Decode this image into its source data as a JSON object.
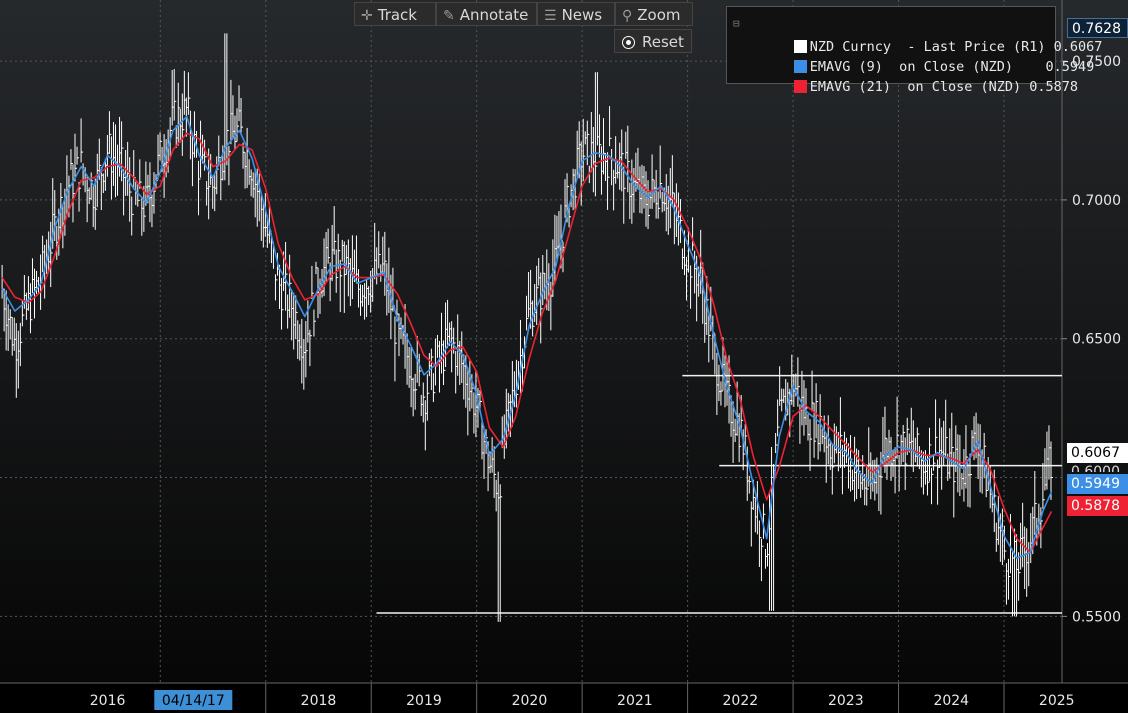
{
  "toolbar": {
    "track_label": "Track",
    "annotate_label": "Annotate",
    "news_label": "News",
    "zoom_label": "Zoom",
    "reset_label": "Reset"
  },
  "legend": {
    "rows": [
      {
        "label": "NZD Curncy  - Last Price (R1)",
        "value": "0.6067",
        "color": "#ffffff"
      },
      {
        "label": "EMAVG (9)  on Close (NZD)",
        "value": "0.5949",
        "color": "#3c8fe6"
      },
      {
        "label": "EMAVG (21)  on Close (NZD)",
        "value": "0.5878",
        "color": "#ee2233"
      }
    ]
  },
  "badges": {
    "top_value": "0.7628",
    "last_price": "0.6067",
    "ema9": "0.5949",
    "ema21": "0.5878",
    "partially_hidden_tick": "0.6000"
  },
  "date_marker": "04/14/17",
  "colors": {
    "price": "#ffffff",
    "ema9": "#3c8fe6",
    "ema21": "#ee2233",
    "badge_white_bg": "#ffffff",
    "badge_blue_bg": "#3c8fe6",
    "badge_red_bg": "#ee2233"
  },
  "chart_data": {
    "type": "line",
    "title": "",
    "xlabel": "",
    "ylabel": "",
    "x_tick_labels": [
      "2016",
      "2017",
      "2018",
      "2019",
      "2020",
      "2021",
      "2022",
      "2023",
      "2024",
      "2025"
    ],
    "y_tick_labels": [
      "0.7500",
      "0.7000",
      "0.6500",
      "0.5500"
    ],
    "ylim": [
      0.526,
      0.772
    ],
    "xlim": [
      2015.48,
      2025.55
    ],
    "grid": true,
    "legend_position": "top-right",
    "horizontal_lines": [
      {
        "y": 0.6367,
        "x_start": 2021.95
      },
      {
        "y": 0.6043,
        "x_start": 2022.3
      },
      {
        "y": 0.5512,
        "x_start": 2019.05
      }
    ],
    "series": [
      {
        "name": "NZD Curncy  - Last Price (R1)",
        "type": "high-low bars",
        "x": [
          2015.5,
          2015.62,
          2015.75,
          2015.87,
          2016.0,
          2016.12,
          2016.25,
          2016.37,
          2016.5,
          2016.62,
          2016.75,
          2016.87,
          2017.0,
          2017.12,
          2017.25,
          2017.37,
          2017.5,
          2017.62,
          2017.75,
          2017.87,
          2018.0,
          2018.12,
          2018.25,
          2018.37,
          2018.5,
          2018.62,
          2018.75,
          2018.87,
          2019.0,
          2019.12,
          2019.25,
          2019.37,
          2019.5,
          2019.62,
          2019.75,
          2019.87,
          2020.0,
          2020.12,
          2020.21,
          2020.25,
          2020.37,
          2020.5,
          2020.62,
          2020.75,
          2020.87,
          2021.0,
          2021.12,
          2021.25,
          2021.37,
          2021.5,
          2021.62,
          2021.75,
          2021.87,
          2022.0,
          2022.12,
          2022.25,
          2022.37,
          2022.5,
          2022.62,
          2022.75,
          2022.87,
          2023.0,
          2023.12,
          2023.25,
          2023.37,
          2023.5,
          2023.62,
          2023.75,
          2023.87,
          2024.0,
          2024.12,
          2024.25,
          2024.37,
          2024.5,
          2024.62,
          2024.75,
          2024.87,
          2025.0,
          2025.12,
          2025.25,
          2025.37,
          2025.45
        ],
        "values": [
          0.668,
          0.648,
          0.662,
          0.672,
          0.69,
          0.705,
          0.712,
          0.703,
          0.718,
          0.712,
          0.7,
          0.698,
          0.715,
          0.728,
          0.732,
          0.712,
          0.705,
          0.722,
          0.725,
          0.712,
          0.69,
          0.67,
          0.662,
          0.648,
          0.672,
          0.678,
          0.676,
          0.668,
          0.672,
          0.675,
          0.65,
          0.642,
          0.63,
          0.64,
          0.65,
          0.64,
          0.625,
          0.605,
          0.596,
          0.61,
          0.635,
          0.66,
          0.668,
          0.676,
          0.7,
          0.717,
          0.716,
          0.716,
          0.712,
          0.704,
          0.7,
          0.706,
          0.696,
          0.68,
          0.672,
          0.645,
          0.628,
          0.618,
          0.593,
          0.575,
          0.62,
          0.635,
          0.622,
          0.62,
          0.61,
          0.61,
          0.6,
          0.596,
          0.611,
          0.612,
          0.61,
          0.605,
          0.611,
          0.605,
          0.603,
          0.615,
          0.594,
          0.574,
          0.568,
          0.578,
          0.594,
          0.6067
        ],
        "color": "#ffffff"
      },
      {
        "name": "EMAVG (9)  on Close (NZD)",
        "x": [
          2015.5,
          2015.62,
          2015.75,
          2015.87,
          2016.0,
          2016.12,
          2016.25,
          2016.37,
          2016.5,
          2016.62,
          2016.75,
          2016.87,
          2017.0,
          2017.12,
          2017.25,
          2017.37,
          2017.5,
          2017.62,
          2017.75,
          2017.87,
          2018.0,
          2018.12,
          2018.25,
          2018.37,
          2018.5,
          2018.62,
          2018.75,
          2018.87,
          2019.0,
          2019.12,
          2019.25,
          2019.37,
          2019.5,
          2019.62,
          2019.75,
          2019.87,
          2020.0,
          2020.12,
          2020.25,
          2020.37,
          2020.5,
          2020.62,
          2020.75,
          2020.87,
          2021.0,
          2021.12,
          2021.25,
          2021.37,
          2021.5,
          2021.62,
          2021.75,
          2021.87,
          2022.0,
          2022.12,
          2022.25,
          2022.37,
          2022.5,
          2022.62,
          2022.75,
          2022.87,
          2023.0,
          2023.12,
          2023.25,
          2023.37,
          2023.5,
          2023.62,
          2023.75,
          2023.87,
          2024.0,
          2024.12,
          2024.25,
          2024.37,
          2024.5,
          2024.62,
          2024.75,
          2024.87,
          2025.0,
          2025.12,
          2025.25,
          2025.37,
          2025.45
        ],
        "values": [
          0.668,
          0.66,
          0.664,
          0.67,
          0.69,
          0.703,
          0.712,
          0.705,
          0.716,
          0.712,
          0.704,
          0.699,
          0.71,
          0.725,
          0.73,
          0.716,
          0.708,
          0.719,
          0.725,
          0.715,
          0.696,
          0.676,
          0.667,
          0.658,
          0.668,
          0.676,
          0.677,
          0.67,
          0.672,
          0.674,
          0.657,
          0.648,
          0.637,
          0.641,
          0.649,
          0.644,
          0.63,
          0.608,
          0.614,
          0.63,
          0.655,
          0.666,
          0.676,
          0.697,
          0.714,
          0.717,
          0.716,
          0.712,
          0.705,
          0.701,
          0.705,
          0.697,
          0.684,
          0.673,
          0.651,
          0.633,
          0.618,
          0.598,
          0.578,
          0.615,
          0.633,
          0.624,
          0.62,
          0.612,
          0.609,
          0.602,
          0.598,
          0.608,
          0.611,
          0.61,
          0.606,
          0.609,
          0.606,
          0.603,
          0.613,
          0.597,
          0.579,
          0.571,
          0.573,
          0.588,
          0.5949
        ],
        "color": "#3c8fe6"
      },
      {
        "name": "EMAVG (21)  on Close (NZD)",
        "x": [
          2015.5,
          2015.62,
          2015.75,
          2015.87,
          2016.0,
          2016.12,
          2016.25,
          2016.37,
          2016.5,
          2016.62,
          2016.75,
          2016.87,
          2017.0,
          2017.12,
          2017.25,
          2017.37,
          2017.5,
          2017.62,
          2017.75,
          2017.87,
          2018.0,
          2018.12,
          2018.25,
          2018.37,
          2018.5,
          2018.62,
          2018.75,
          2018.87,
          2019.0,
          2019.12,
          2019.25,
          2019.37,
          2019.5,
          2019.62,
          2019.75,
          2019.87,
          2020.0,
          2020.12,
          2020.25,
          2020.37,
          2020.5,
          2020.62,
          2020.75,
          2020.87,
          2021.0,
          2021.12,
          2021.25,
          2021.37,
          2021.5,
          2021.62,
          2021.75,
          2021.87,
          2022.0,
          2022.12,
          2022.25,
          2022.37,
          2022.5,
          2022.62,
          2022.75,
          2022.87,
          2023.0,
          2023.12,
          2023.25,
          2023.37,
          2023.5,
          2023.62,
          2023.75,
          2023.87,
          2024.0,
          2024.12,
          2024.25,
          2024.37,
          2024.5,
          2024.62,
          2024.75,
          2024.87,
          2025.0,
          2025.12,
          2025.25,
          2025.37,
          2025.45
        ],
        "values": [
          0.672,
          0.665,
          0.663,
          0.667,
          0.68,
          0.695,
          0.707,
          0.708,
          0.712,
          0.713,
          0.708,
          0.702,
          0.705,
          0.718,
          0.724,
          0.722,
          0.712,
          0.714,
          0.72,
          0.718,
          0.704,
          0.684,
          0.672,
          0.664,
          0.666,
          0.673,
          0.676,
          0.672,
          0.672,
          0.673,
          0.666,
          0.656,
          0.644,
          0.64,
          0.646,
          0.647,
          0.638,
          0.618,
          0.611,
          0.622,
          0.643,
          0.659,
          0.671,
          0.687,
          0.705,
          0.713,
          0.715,
          0.714,
          0.708,
          0.703,
          0.704,
          0.7,
          0.69,
          0.679,
          0.662,
          0.643,
          0.628,
          0.608,
          0.592,
          0.604,
          0.622,
          0.626,
          0.622,
          0.617,
          0.612,
          0.607,
          0.602,
          0.605,
          0.609,
          0.61,
          0.608,
          0.608,
          0.607,
          0.605,
          0.61,
          0.603,
          0.589,
          0.578,
          0.573,
          0.582,
          0.5878
        ],
        "color": "#ee2233"
      }
    ]
  }
}
